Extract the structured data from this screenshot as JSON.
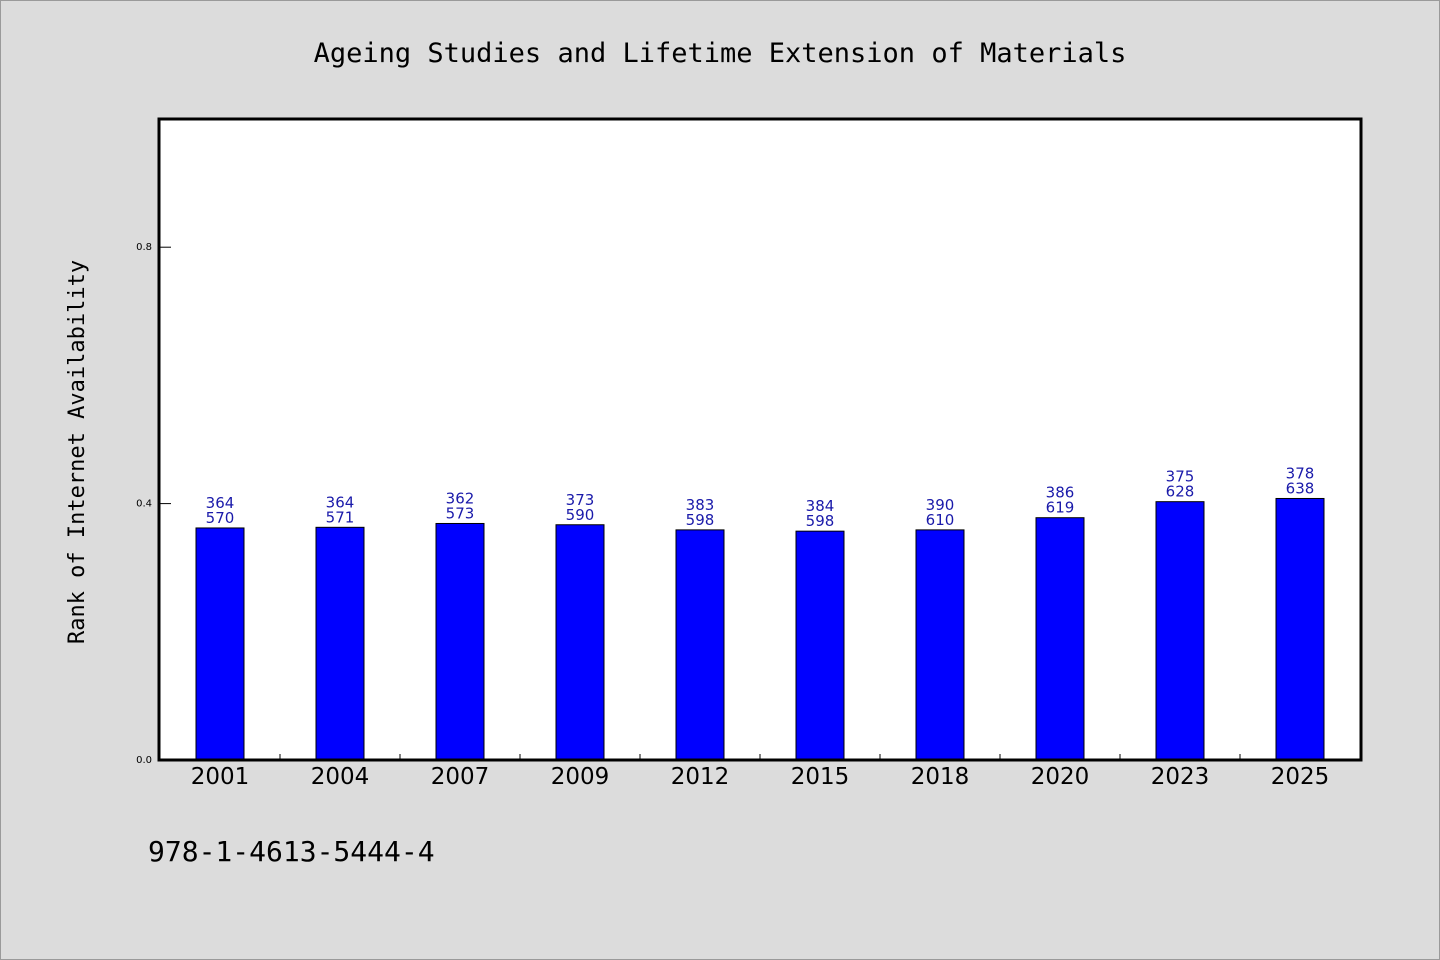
{
  "footer_code": "978-1-4613-5444-4",
  "colors": {
    "background": "#dcdcdc",
    "plot_background": "#ffffff",
    "bar": "#0000ff",
    "data_label": "#1a1aaa"
  },
  "chart_data": {
    "type": "bar",
    "title": "Ageing Studies and Lifetime Extension of Materials",
    "xlabel": "",
    "ylabel": "Rank of Internet Availability",
    "ylim": [
      0,
      1.0
    ],
    "yticks": [
      0.0,
      0.4,
      0.8
    ],
    "ytick_labels": [
      "0.0",
      "0.4",
      "0.8"
    ],
    "grid": false,
    "categories": [
      "2001",
      "2004",
      "2007",
      "2009",
      "2012",
      "2015",
      "2018",
      "2020",
      "2023",
      "2025"
    ],
    "values": [
      0.362,
      0.363,
      0.369,
      0.367,
      0.359,
      0.357,
      0.359,
      0.378,
      0.403,
      0.408
    ],
    "data_labels_top": [
      "364",
      "364",
      "362",
      "373",
      "383",
      "384",
      "390",
      "386",
      "375",
      "378"
    ],
    "data_labels_bottom": [
      "570",
      "571",
      "573",
      "590",
      "598",
      "598",
      "610",
      "619",
      "628",
      "638"
    ]
  }
}
